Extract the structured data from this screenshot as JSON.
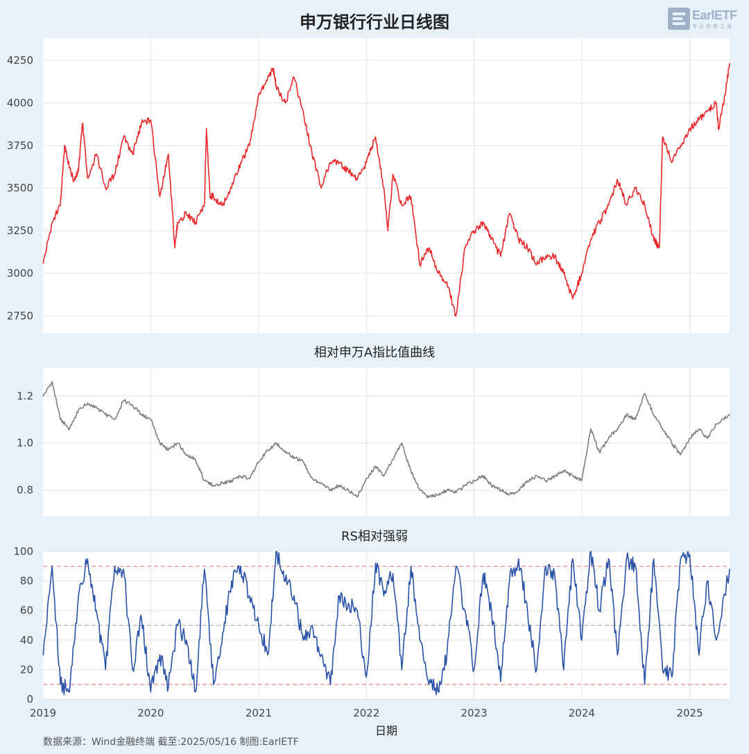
{
  "title": "申万银行行业日线图",
  "logo": {
    "text": "EarlETF",
    "sub": "专业指数之道"
  },
  "source_note": "数据来源：Wind金融终端 截至:2025/05/16 制图:EarlETF",
  "colors": {
    "background": "#e6f1fa",
    "price": "#e8282a",
    "ratio": "#7f7f7f",
    "rs": "#2a52a6",
    "ref_high_low": "#f08080",
    "ref_mid": "#b0b0b0"
  },
  "chart_data": [
    {
      "type": "line",
      "title": "",
      "series": [
        {
          "name": "",
          "color": "#e8282a"
        }
      ],
      "x": [
        "2019-01-02",
        "2019-02-01",
        "2019-03-01",
        "2019-03-15",
        "2019-04-01",
        "2019-04-15",
        "2019-05-01",
        "2019-05-15",
        "2019-06-01",
        "2019-07-01",
        "2019-08-01",
        "2019-09-01",
        "2019-10-01",
        "2019-11-01",
        "2019-12-01",
        "2020-01-01",
        "2020-02-01",
        "2020-03-01",
        "2020-03-23",
        "2020-04-01",
        "2020-05-01",
        "2020-06-01",
        "2020-07-01",
        "2020-07-08",
        "2020-07-20",
        "2020-08-01",
        "2020-09-01",
        "2020-10-01",
        "2020-11-01",
        "2020-12-01",
        "2021-01-01",
        "2021-02-01",
        "2021-02-20",
        "2021-03-01",
        "2021-04-01",
        "2021-05-01",
        "2021-06-01",
        "2021-07-01",
        "2021-08-01",
        "2021-09-01",
        "2021-10-01",
        "2021-11-01",
        "2021-12-01",
        "2022-01-01",
        "2022-02-01",
        "2022-03-01",
        "2022-03-15",
        "2022-04-01",
        "2022-05-01",
        "2022-06-01",
        "2022-07-01",
        "2022-08-01",
        "2022-09-01",
        "2022-10-01",
        "2022-10-31",
        "2022-12-01",
        "2023-01-01",
        "2023-02-01",
        "2023-03-01",
        "2023-04-01",
        "2023-05-01",
        "2023-06-01",
        "2023-07-01",
        "2023-08-01",
        "2023-09-01",
        "2023-10-01",
        "2023-11-01",
        "2023-12-01",
        "2024-01-01",
        "2024-02-01",
        "2024-03-01",
        "2024-04-01",
        "2024-05-01",
        "2024-06-01",
        "2024-07-01",
        "2024-08-01",
        "2024-09-01",
        "2024-09-20",
        "2024-10-01",
        "2024-11-01",
        "2024-12-01",
        "2025-01-01",
        "2025-02-01",
        "2025-03-01",
        "2025-04-01",
        "2025-04-09",
        "2025-05-01",
        "2025-05-16"
      ],
      "values": [
        3060,
        3300,
        3400,
        3750,
        3620,
        3550,
        3600,
        3880,
        3560,
        3700,
        3500,
        3580,
        3800,
        3700,
        3880,
        3900,
        3450,
        3700,
        3150,
        3300,
        3350,
        3300,
        3400,
        3850,
        3450,
        3450,
        3400,
        3500,
        3650,
        3750,
        4050,
        4150,
        4200,
        4100,
        4000,
        4150,
        3950,
        3700,
        3500,
        3650,
        3650,
        3600,
        3550,
        3650,
        3800,
        3500,
        3250,
        3580,
        3400,
        3450,
        3050,
        3150,
        3000,
        2950,
        2750,
        3150,
        3250,
        3300,
        3200,
        3100,
        3350,
        3200,
        3150,
        3050,
        3100,
        3100,
        3000,
        2850,
        3000,
        3200,
        3300,
        3400,
        3550,
        3400,
        3500,
        3400,
        3200,
        3150,
        3800,
        3650,
        3750,
        3850,
        3900,
        3950,
        4000,
        3850,
        4050,
        4230
      ],
      "ylim": [
        2650,
        4380
      ],
      "yticks": [
        2750,
        3000,
        3250,
        3500,
        3750,
        4000,
        4250
      ]
    },
    {
      "type": "line",
      "title": "相对申万A指比值曲线",
      "series": [
        {
          "name": "",
          "color": "#7f7f7f"
        }
      ],
      "x": [
        "2019-01-02",
        "2019-02-01",
        "2019-03-01",
        "2019-04-01",
        "2019-05-01",
        "2019-06-01",
        "2019-07-01",
        "2019-08-01",
        "2019-09-01",
        "2019-10-01",
        "2019-11-01",
        "2019-12-01",
        "2020-01-01",
        "2020-02-01",
        "2020-03-01",
        "2020-04-01",
        "2020-05-01",
        "2020-06-01",
        "2020-07-01",
        "2020-08-01",
        "2020-09-01",
        "2020-10-01",
        "2020-11-01",
        "2020-12-01",
        "2021-01-01",
        "2021-02-01",
        "2021-03-01",
        "2021-04-01",
        "2021-05-01",
        "2021-06-01",
        "2021-07-01",
        "2021-08-01",
        "2021-09-01",
        "2021-10-01",
        "2021-11-01",
        "2021-12-01",
        "2022-01-01",
        "2022-02-01",
        "2022-03-01",
        "2022-04-01",
        "2022-05-01",
        "2022-06-01",
        "2022-07-01",
        "2022-08-01",
        "2022-09-01",
        "2022-10-01",
        "2022-11-01",
        "2022-12-01",
        "2023-01-01",
        "2023-02-01",
        "2023-03-01",
        "2023-04-01",
        "2023-05-01",
        "2023-06-01",
        "2023-07-01",
        "2023-08-01",
        "2023-09-01",
        "2023-10-01",
        "2023-11-01",
        "2023-12-01",
        "2024-01-01",
        "2024-02-01",
        "2024-03-01",
        "2024-04-01",
        "2024-05-01",
        "2024-06-01",
        "2024-07-01",
        "2024-08-01",
        "2024-09-01",
        "2024-10-01",
        "2024-11-01",
        "2024-12-01",
        "2025-01-01",
        "2025-02-01",
        "2025-03-01",
        "2025-04-01",
        "2025-05-16"
      ],
      "values": [
        1.2,
        1.26,
        1.1,
        1.06,
        1.14,
        1.17,
        1.15,
        1.12,
        1.1,
        1.18,
        1.16,
        1.12,
        1.1,
        1.0,
        0.97,
        1.0,
        0.95,
        0.93,
        0.84,
        0.82,
        0.83,
        0.84,
        0.86,
        0.85,
        0.92,
        0.97,
        1.0,
        0.96,
        0.94,
        0.92,
        0.85,
        0.83,
        0.8,
        0.82,
        0.8,
        0.77,
        0.85,
        0.9,
        0.86,
        0.93,
        1.0,
        0.88,
        0.8,
        0.77,
        0.78,
        0.8,
        0.79,
        0.82,
        0.84,
        0.86,
        0.82,
        0.8,
        0.78,
        0.8,
        0.84,
        0.86,
        0.84,
        0.86,
        0.88,
        0.86,
        0.84,
        1.06,
        0.96,
        1.02,
        1.06,
        1.12,
        1.1,
        1.21,
        1.12,
        1.06,
        1.0,
        0.95,
        1.02,
        1.06,
        1.02,
        1.08,
        1.12
      ],
      "ylim": [
        0.69,
        1.32
      ],
      "yticks": [
        0.8,
        1.0,
        1.2
      ]
    },
    {
      "type": "line",
      "title": "RS相对强弱",
      "series": [
        {
          "name": "",
          "color": "#2a52a6"
        }
      ],
      "x": [
        "2019-01-02",
        "2019-02-01",
        "2019-03-01",
        "2019-04-01",
        "2019-05-01",
        "2019-06-01",
        "2019-07-01",
        "2019-08-01",
        "2019-09-01",
        "2019-10-01",
        "2019-11-01",
        "2019-12-01",
        "2020-01-01",
        "2020-02-01",
        "2020-03-01",
        "2020-04-01",
        "2020-05-01",
        "2020-06-01",
        "2020-07-01",
        "2020-08-01",
        "2020-09-01",
        "2020-10-01",
        "2020-11-01",
        "2020-12-01",
        "2021-01-01",
        "2021-02-01",
        "2021-03-01",
        "2021-04-01",
        "2021-05-01",
        "2021-06-01",
        "2021-07-01",
        "2021-08-01",
        "2021-09-01",
        "2021-10-01",
        "2021-11-01",
        "2021-12-01",
        "2022-01-01",
        "2022-02-01",
        "2022-03-01",
        "2022-04-01",
        "2022-05-01",
        "2022-06-01",
        "2022-07-01",
        "2022-08-01",
        "2022-09-01",
        "2022-10-01",
        "2022-11-01",
        "2022-12-01",
        "2023-01-01",
        "2023-02-01",
        "2023-03-01",
        "2023-04-01",
        "2023-05-01",
        "2023-06-01",
        "2023-07-01",
        "2023-08-01",
        "2023-09-01",
        "2023-10-01",
        "2023-11-01",
        "2023-12-01",
        "2024-01-01",
        "2024-02-01",
        "2024-03-01",
        "2024-04-01",
        "2024-05-01",
        "2024-06-01",
        "2024-07-01",
        "2024-08-01",
        "2024-09-01",
        "2024-10-01",
        "2024-11-01",
        "2024-12-01",
        "2025-01-01",
        "2025-02-01",
        "2025-03-01",
        "2025-04-01",
        "2025-05-16"
      ],
      "values": [
        30,
        90,
        10,
        5,
        70,
        95,
        60,
        20,
        90,
        88,
        20,
        55,
        5,
        30,
        8,
        50,
        40,
        5,
        88,
        10,
        45,
        80,
        90,
        70,
        50,
        30,
        100,
        80,
        70,
        40,
        50,
        30,
        10,
        70,
        65,
        60,
        15,
        92,
        70,
        85,
        20,
        90,
        40,
        10,
        5,
        30,
        90,
        60,
        20,
        85,
        60,
        12,
        80,
        95,
        60,
        20,
        90,
        85,
        20,
        95,
        40,
        100,
        60,
        95,
        30,
        95,
        90,
        10,
        95,
        20,
        15,
        95,
        98,
        30,
        80,
        40,
        88
      ],
      "ylim": [
        0,
        100
      ],
      "yticks": [
        0,
        20,
        40,
        60,
        80,
        100
      ],
      "reference_lines": [
        {
          "value": 90,
          "color": "#f08080",
          "style": "dashed"
        },
        {
          "value": 50,
          "color": "#b0b0b0",
          "style": "dashed"
        },
        {
          "value": 10,
          "color": "#f08080",
          "style": "dashed"
        }
      ],
      "xlabel": "日期",
      "xticks": [
        "2019",
        "2020",
        "2021",
        "2022",
        "2023",
        "2024",
        "2025"
      ]
    }
  ]
}
